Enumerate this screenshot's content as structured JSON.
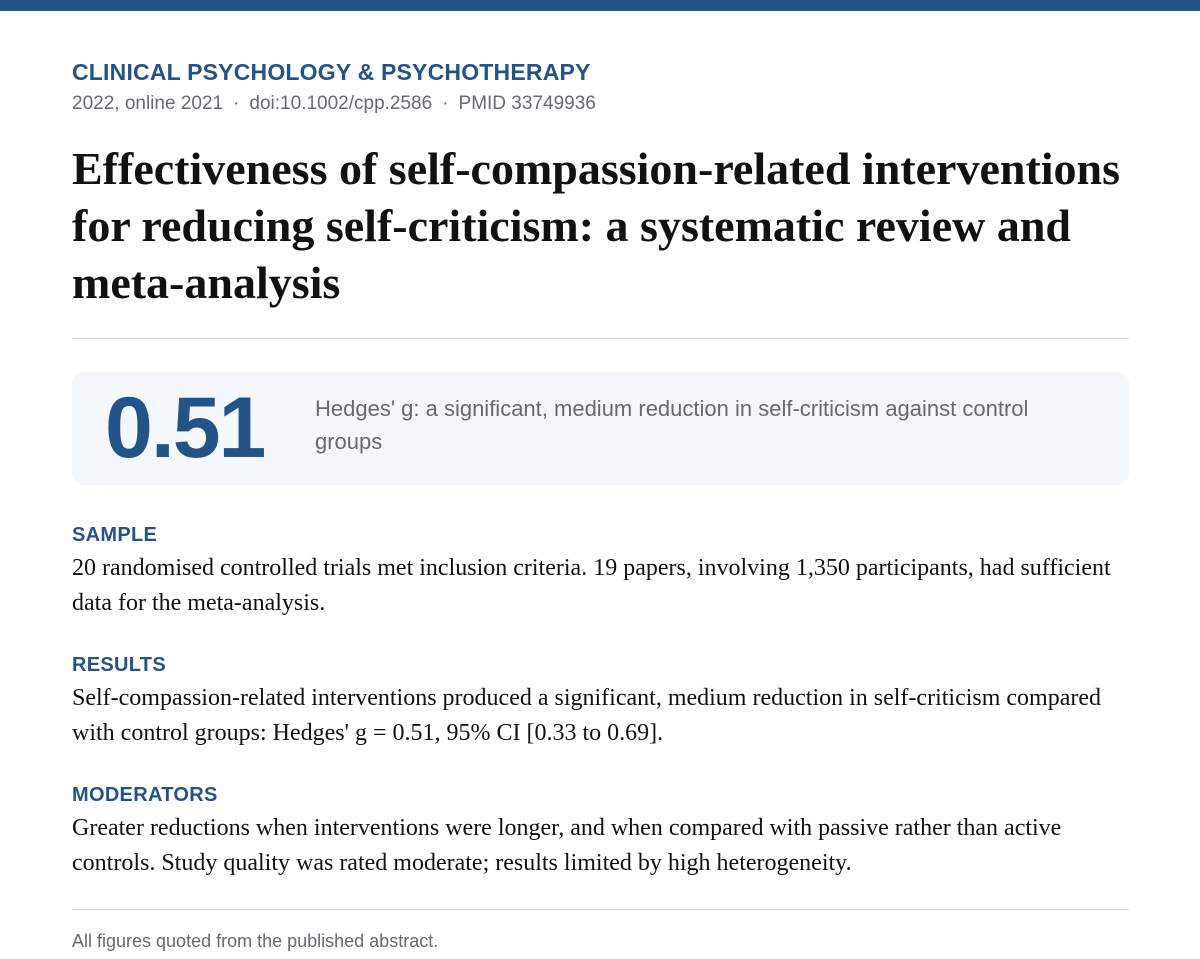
{
  "header": {
    "journal": "CLINICAL PSYCHOLOGY & PSYCHOTHERAPY",
    "year": "2022, online 2021",
    "doi": "doi:10.1002/cpp.2586",
    "pmid": "PMID 33749936",
    "separator": "·",
    "accent_color": "#245388"
  },
  "title": "Effectiveness of self-compassion-related interventions for reducing self-criticism: a systematic review and meta-analysis",
  "highlight": {
    "value": "0.51",
    "description": "Hedges' g: a significant, medium reduction in self-criticism against control groups"
  },
  "sections": [
    {
      "label": "SAMPLE",
      "text": "20 randomised controlled trials met inclusion criteria. 19 papers, involving 1,350 participants, had sufficient data for the meta-analysis."
    },
    {
      "label": "RESULTS",
      "text": "Self-compassion-related interventions produced a significant, medium reduction in self-criticism compared with control groups: Hedges' g = 0.51, 95% CI [0.33 to 0.69]."
    },
    {
      "label": "MODERATORS",
      "text": "Greater reductions when interventions were longer, and when compared with passive rather than active controls. Study quality was rated moderate; results limited by high heterogeneity."
    }
  ],
  "footnote": "All figures quoted from the published abstract."
}
